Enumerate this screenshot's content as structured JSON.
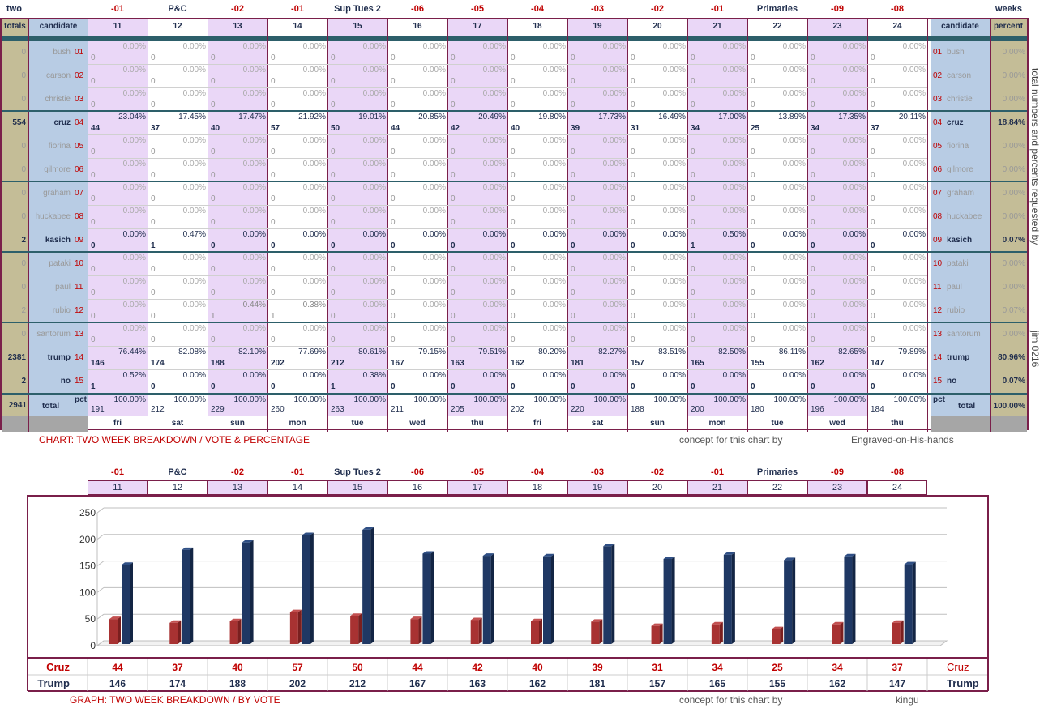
{
  "top": {
    "left_header": "two",
    "right_header": "weeks",
    "col_headers_top": [
      "-01",
      "P&C",
      "-02",
      "-01",
      "Sup Tues 2",
      "-06",
      "-05",
      "-04",
      "-03",
      "-02",
      "-01",
      "Primaries",
      "-09",
      "-08"
    ],
    "day_numbers": [
      "11",
      "12",
      "13",
      "14",
      "15",
      "16",
      "17",
      "18",
      "19",
      "20",
      "21",
      "22",
      "23",
      "24"
    ],
    "weekdays": [
      "fri",
      "sat",
      "sun",
      "mon",
      "tue",
      "wed",
      "thu",
      "fri",
      "sat",
      "sun",
      "mon",
      "tue",
      "wed",
      "thu"
    ],
    "totals_label": "totals",
    "candidate_label": "candidate",
    "percent_label": "percent",
    "total_row_label": "total",
    "pct_label": "pct",
    "grand_total": "2941",
    "grand_percent": "100.00%",
    "side_note": "total numbers and percents requested by",
    "side_note2": "jim 0216",
    "caption_left": "CHART: TWO WEEK BREAKDOWN / VOTE & PERCENTAGE",
    "caption_mid": "concept for this chart by",
    "caption_right": "Engraved-on-His-hands"
  },
  "candidates": [
    {
      "idx": "01",
      "name": "bush",
      "total": "0",
      "percent": "0.00%",
      "bold": false,
      "votes": [
        "0",
        "0",
        "0",
        "0",
        "0",
        "0",
        "0",
        "0",
        "0",
        "0",
        "0",
        "0",
        "0",
        "0"
      ],
      "pcts": [
        "0.00%",
        "0.00%",
        "0.00%",
        "0.00%",
        "0.00%",
        "0.00%",
        "0.00%",
        "0.00%",
        "0.00%",
        "0.00%",
        "0.00%",
        "0.00%",
        "0.00%",
        "0.00%"
      ]
    },
    {
      "idx": "02",
      "name": "carson",
      "total": "0",
      "percent": "0.00%",
      "bold": false,
      "votes": [
        "0",
        "0",
        "0",
        "0",
        "0",
        "0",
        "0",
        "0",
        "0",
        "0",
        "0",
        "0",
        "0",
        "0"
      ],
      "pcts": [
        "0.00%",
        "0.00%",
        "0.00%",
        "0.00%",
        "0.00%",
        "0.00%",
        "0.00%",
        "0.00%",
        "0.00%",
        "0.00%",
        "0.00%",
        "0.00%",
        "0.00%",
        "0.00%"
      ]
    },
    {
      "idx": "03",
      "name": "christie",
      "total": "0",
      "percent": "0.00%",
      "bold": false,
      "votes": [
        "0",
        "0",
        "0",
        "0",
        "0",
        "0",
        "0",
        "0",
        "0",
        "0",
        "0",
        "0",
        "0",
        "0"
      ],
      "pcts": [
        "0.00%",
        "0.00%",
        "0.00%",
        "0.00%",
        "0.00%",
        "0.00%",
        "0.00%",
        "0.00%",
        "0.00%",
        "0.00%",
        "0.00%",
        "0.00%",
        "0.00%",
        "0.00%"
      ]
    },
    {
      "idx": "04",
      "name": "cruz",
      "total": "554",
      "percent": "18.84%",
      "bold": true,
      "votes": [
        "44",
        "37",
        "40",
        "57",
        "50",
        "44",
        "42",
        "40",
        "39",
        "31",
        "34",
        "25",
        "34",
        "37"
      ],
      "pcts": [
        "23.04%",
        "17.45%",
        "17.47%",
        "21.92%",
        "19.01%",
        "20.85%",
        "20.49%",
        "19.80%",
        "17.73%",
        "16.49%",
        "17.00%",
        "13.89%",
        "17.35%",
        "20.11%"
      ]
    },
    {
      "idx": "05",
      "name": "fiorina",
      "total": "0",
      "percent": "0.00%",
      "bold": false,
      "votes": [
        "0",
        "0",
        "0",
        "0",
        "0",
        "0",
        "0",
        "0",
        "0",
        "0",
        "0",
        "0",
        "0",
        "0"
      ],
      "pcts": [
        "0.00%",
        "0.00%",
        "0.00%",
        "0.00%",
        "0.00%",
        "0.00%",
        "0.00%",
        "0.00%",
        "0.00%",
        "0.00%",
        "0.00%",
        "0.00%",
        "0.00%",
        "0.00%"
      ]
    },
    {
      "idx": "06",
      "name": "gilmore",
      "total": "0",
      "percent": "0.00%",
      "bold": false,
      "votes": [
        "0",
        "0",
        "0",
        "0",
        "0",
        "0",
        "0",
        "0",
        "0",
        "0",
        "0",
        "0",
        "0",
        "0"
      ],
      "pcts": [
        "0.00%",
        "0.00%",
        "0.00%",
        "0.00%",
        "0.00%",
        "0.00%",
        "0.00%",
        "0.00%",
        "0.00%",
        "0.00%",
        "0.00%",
        "0.00%",
        "0.00%",
        "0.00%"
      ]
    },
    {
      "idx": "07",
      "name": "graham",
      "total": "0",
      "percent": "0.00%",
      "bold": false,
      "votes": [
        "0",
        "0",
        "0",
        "0",
        "0",
        "0",
        "0",
        "0",
        "0",
        "0",
        "0",
        "0",
        "0",
        "0"
      ],
      "pcts": [
        "0.00%",
        "0.00%",
        "0.00%",
        "0.00%",
        "0.00%",
        "0.00%",
        "0.00%",
        "0.00%",
        "0.00%",
        "0.00%",
        "0.00%",
        "0.00%",
        "0.00%",
        "0.00%"
      ]
    },
    {
      "idx": "08",
      "name": "huckabee",
      "total": "0",
      "percent": "0.00%",
      "bold": false,
      "votes": [
        "0",
        "0",
        "0",
        "0",
        "0",
        "0",
        "0",
        "0",
        "0",
        "0",
        "0",
        "0",
        "0",
        "0"
      ],
      "pcts": [
        "0.00%",
        "0.00%",
        "0.00%",
        "0.00%",
        "0.00%",
        "0.00%",
        "0.00%",
        "0.00%",
        "0.00%",
        "0.00%",
        "0.00%",
        "0.00%",
        "0.00%",
        "0.00%"
      ]
    },
    {
      "idx": "09",
      "name": "kasich",
      "total": "2",
      "percent": "0.07%",
      "bold": true,
      "votes": [
        "0",
        "1",
        "0",
        "0",
        "0",
        "0",
        "0",
        "0",
        "0",
        "0",
        "1",
        "0",
        "0",
        "0"
      ],
      "pcts": [
        "0.00%",
        "0.47%",
        "0.00%",
        "0.00%",
        "0.00%",
        "0.00%",
        "0.00%",
        "0.00%",
        "0.00%",
        "0.00%",
        "0.50%",
        "0.00%",
        "0.00%",
        "0.00%"
      ]
    },
    {
      "idx": "10",
      "name": "pataki",
      "total": "0",
      "percent": "0.00%",
      "bold": false,
      "votes": [
        "0",
        "0",
        "0",
        "0",
        "0",
        "0",
        "0",
        "0",
        "0",
        "0",
        "0",
        "0",
        "0",
        "0"
      ],
      "pcts": [
        "0.00%",
        "0.00%",
        "0.00%",
        "0.00%",
        "0.00%",
        "0.00%",
        "0.00%",
        "0.00%",
        "0.00%",
        "0.00%",
        "0.00%",
        "0.00%",
        "0.00%",
        "0.00%"
      ]
    },
    {
      "idx": "11",
      "name": "paul",
      "total": "0",
      "percent": "0.00%",
      "bold": false,
      "votes": [
        "0",
        "0",
        "0",
        "0",
        "0",
        "0",
        "0",
        "0",
        "0",
        "0",
        "0",
        "0",
        "0",
        "0"
      ],
      "pcts": [
        "0.00%",
        "0.00%",
        "0.00%",
        "0.00%",
        "0.00%",
        "0.00%",
        "0.00%",
        "0.00%",
        "0.00%",
        "0.00%",
        "0.00%",
        "0.00%",
        "0.00%",
        "0.00%"
      ]
    },
    {
      "idx": "12",
      "name": "rubio",
      "total": "2",
      "percent": "0.07%",
      "bold": false,
      "votes": [
        "0",
        "0",
        "1",
        "1",
        "0",
        "0",
        "0",
        "0",
        "0",
        "0",
        "0",
        "0",
        "0",
        "0"
      ],
      "pcts": [
        "0.00%",
        "0.00%",
        "0.44%",
        "0.38%",
        "0.00%",
        "0.00%",
        "0.00%",
        "0.00%",
        "0.00%",
        "0.00%",
        "0.00%",
        "0.00%",
        "0.00%",
        "0.00%"
      ]
    },
    {
      "idx": "13",
      "name": "santorum",
      "total": "0",
      "percent": "0.00%",
      "bold": false,
      "votes": [
        "0",
        "0",
        "0",
        "0",
        "0",
        "0",
        "0",
        "0",
        "0",
        "0",
        "0",
        "0",
        "0",
        "0"
      ],
      "pcts": [
        "0.00%",
        "0.00%",
        "0.00%",
        "0.00%",
        "0.00%",
        "0.00%",
        "0.00%",
        "0.00%",
        "0.00%",
        "0.00%",
        "0.00%",
        "0.00%",
        "0.00%",
        "0.00%"
      ]
    },
    {
      "idx": "14",
      "name": "trump",
      "total": "2381",
      "percent": "80.96%",
      "bold": true,
      "votes": [
        "146",
        "174",
        "188",
        "202",
        "212",
        "167",
        "163",
        "162",
        "181",
        "157",
        "165",
        "155",
        "162",
        "147"
      ],
      "pcts": [
        "76.44%",
        "82.08%",
        "82.10%",
        "77.69%",
        "80.61%",
        "79.15%",
        "79.51%",
        "80.20%",
        "82.27%",
        "83.51%",
        "82.50%",
        "86.11%",
        "82.65%",
        "79.89%"
      ]
    },
    {
      "idx": "15",
      "name": "no",
      "total": "2",
      "percent": "0.07%",
      "bold": true,
      "votes": [
        "1",
        "0",
        "0",
        "0",
        "1",
        "0",
        "0",
        "0",
        "0",
        "0",
        "0",
        "0",
        "0",
        "0"
      ],
      "pcts": [
        "0.52%",
        "0.00%",
        "0.00%",
        "0.00%",
        "0.38%",
        "0.00%",
        "0.00%",
        "0.00%",
        "0.00%",
        "0.00%",
        "0.00%",
        "0.00%",
        "0.00%",
        "0.00%"
      ]
    }
  ],
  "totals_row": {
    "votes": [
      "191",
      "212",
      "229",
      "260",
      "263",
      "211",
      "205",
      "202",
      "220",
      "188",
      "200",
      "180",
      "196",
      "184"
    ],
    "pcts": [
      "100.00%",
      "100.00%",
      "100.00%",
      "100.00%",
      "100.00%",
      "100.00%",
      "100.00%",
      "100.00%",
      "100.00%",
      "100.00%",
      "100.00%",
      "100.00%",
      "100.00%",
      "100.00%"
    ]
  },
  "graph": {
    "col_headers_top": [
      "-01",
      "P&C",
      "-02",
      "-01",
      "Sup Tues 2",
      "-06",
      "-05",
      "-04",
      "-03",
      "-02",
      "-01",
      "Primaries",
      "-09",
      "-08"
    ],
    "day_numbers": [
      "11",
      "12",
      "13",
      "14",
      "15",
      "16",
      "17",
      "18",
      "19",
      "20",
      "21",
      "22",
      "23",
      "24"
    ],
    "row_cruz_label": "Cruz",
    "row_trump_label": "Trump",
    "caption_left": "GRAPH: TWO WEEK BREAKDOWN / BY VOTE",
    "caption_mid": "concept for this chart by",
    "caption_right": "kingu"
  },
  "chart_data": {
    "type": "bar",
    "categories": [
      "11",
      "12",
      "13",
      "14",
      "15",
      "16",
      "17",
      "18",
      "19",
      "20",
      "21",
      "22",
      "23",
      "24"
    ],
    "series": [
      {
        "name": "Cruz",
        "values": [
          44,
          37,
          40,
          57,
          50,
          44,
          42,
          40,
          39,
          31,
          34,
          25,
          34,
          37
        ]
      },
      {
        "name": "Trump",
        "values": [
          146,
          174,
          188,
          202,
          212,
          167,
          163,
          162,
          181,
          157,
          165,
          155,
          162,
          147
        ]
      }
    ],
    "yticks": [
      "0",
      "50",
      "100",
      "150",
      "200",
      "250"
    ],
    "ylim": [
      0,
      250
    ],
    "grid": true,
    "colors": {
      "Cruz": "#a83232",
      "Trump": "#1f3864"
    }
  },
  "colors": {
    "purple": "#ead7f7",
    "blue_side": "#b8cce4",
    "tan": "#c4bd97",
    "gray": "#a6a6a6",
    "frame": "#7a1f4a",
    "teal": "#2d5f6a",
    "red": "#c00000",
    "navy": "#1f2d4d"
  }
}
